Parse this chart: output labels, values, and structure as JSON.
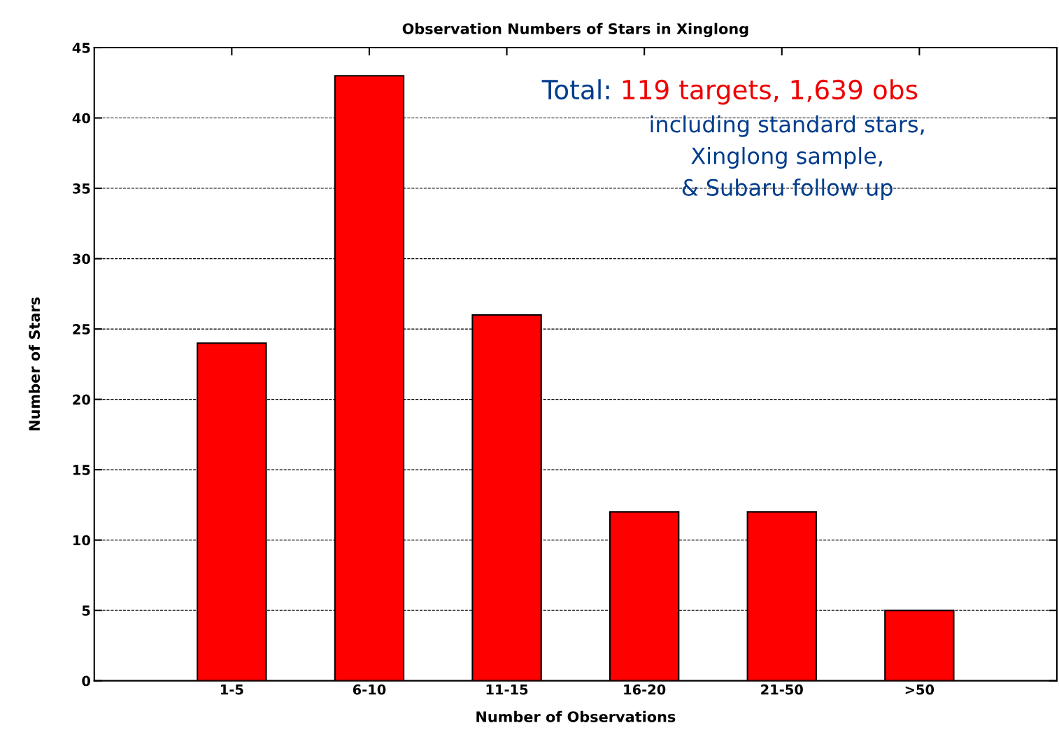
{
  "chart_data": {
    "type": "bar",
    "title": "Observation Numbers of Stars in Xinglong",
    "xlabel": "Number of Observations",
    "ylabel": "Number of Stars",
    "categories": [
      "1-5",
      "6-10",
      "11-15",
      "16-20",
      "21-50",
      ">50"
    ],
    "values": [
      24,
      43,
      26,
      12,
      12,
      5
    ],
    "color": "#ff0000",
    "ylim": [
      0,
      45
    ],
    "yticks": [
      0,
      5,
      10,
      15,
      20,
      25,
      30,
      35,
      40,
      45
    ],
    "grid": "y",
    "annotations": [
      "Total:",
      "119 targets, 1,639 obs",
      "including standard stars,",
      "Xinglong sample,",
      "& Subaru follow up"
    ]
  }
}
